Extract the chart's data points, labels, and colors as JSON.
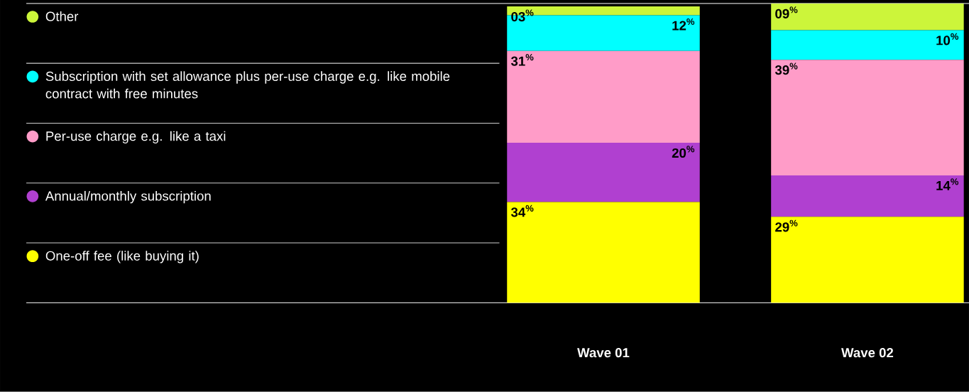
{
  "chart_data": {
    "type": "bar",
    "stacked": true,
    "legend": "left",
    "categories": [
      "Wave 01",
      "Wave 02"
    ],
    "series": [
      {
        "name": "One-off fee (like buying it)",
        "color": "#ffff00",
        "values": [
          34,
          29
        ],
        "value_labels": [
          "34$^{%}$",
          "29$^{%}$"
        ]
      },
      {
        "name": "Annual/monthly subscription",
        "color": "#b040d0",
        "values": [
          20,
          14
        ],
        "value_labels": [
          "20$^{%}$",
          "14$^{%}$"
        ]
      },
      {
        "name": "Per-use charge e.g. like a taxi",
        "color": "#ff9cc8",
        "values": [
          31,
          39
        ],
        "value_labels": [
          "31$^{%}$",
          "39$^{%}$"
        ]
      },
      {
        "name": "Subscription with set allowance plus per-use charge e.g. like mobile contract with free minutes",
        "color": "#00ffff",
        "values": [
          12,
          10
        ],
        "value_labels": [
          "12$^{%}$",
          "10$^{%}$"
        ]
      },
      {
        "name": "Other",
        "color": "#ccf53a",
        "values": [
          3,
          9
        ],
        "value_labels": [
          "03$^{%}$",
          "09$^{%}$"
        ]
      }
    ]
  }
}
